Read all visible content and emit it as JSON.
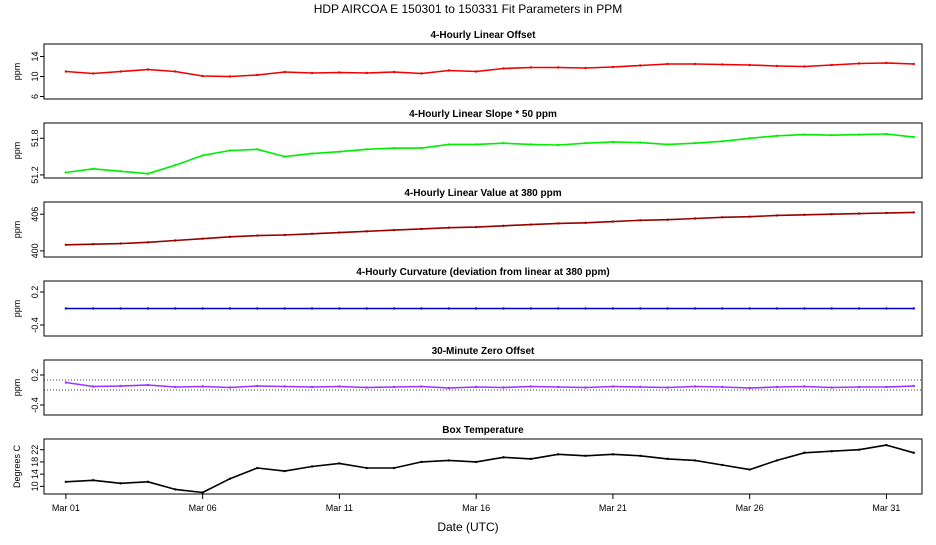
{
  "figure": {
    "title": "HDP    AIRCOA E    150301 to 150331    Fit Parameters in PPM",
    "xlabel": "Date (UTC)",
    "x_ticks": [
      {
        "label": "Mar 01",
        "day": 1
      },
      {
        "label": "Mar 06",
        "day": 6
      },
      {
        "label": "Mar 11",
        "day": 11
      },
      {
        "label": "Mar 16",
        "day": 16
      },
      {
        "label": "Mar 21",
        "day": 21
      },
      {
        "label": "Mar 26",
        "day": 26
      },
      {
        "label": "Mar 31",
        "day": 31
      }
    ],
    "xlim_days": [
      0.2,
      32.3
    ]
  },
  "chart_data": [
    {
      "type": "line",
      "title": "4-Hourly Linear Offset",
      "ylabel": "ppm",
      "color": "#ee0000",
      "ylim": [
        5.5,
        16.5
      ],
      "y_ticks": [
        6,
        10,
        14
      ],
      "reference_lines": [],
      "x": [
        1.0,
        2.0,
        3.0,
        4.0,
        5.0,
        6.0,
        7.0,
        8.0,
        9.0,
        10.0,
        11.0,
        12.0,
        13.0,
        14.0,
        15.0,
        16.0,
        17.0,
        18.0,
        19.0,
        20.0,
        21.0,
        22.0,
        23.0,
        24.0,
        25.0,
        26.0,
        27.0,
        28.0,
        29.0,
        30.0,
        31.0,
        32.0
      ],
      "values": [
        11.0,
        10.6,
        11.0,
        11.4,
        11.0,
        10.1,
        10.0,
        10.3,
        10.9,
        10.7,
        10.8,
        10.7,
        10.9,
        10.6,
        11.2,
        11.0,
        11.6,
        11.8,
        11.8,
        11.7,
        11.9,
        12.2,
        12.5,
        12.5,
        12.4,
        12.3,
        12.1,
        12.0,
        12.3,
        12.6,
        12.7,
        12.5
      ]
    },
    {
      "type": "line",
      "title": "4-Hourly Linear Slope * 50 ppm",
      "ylabel": "ppm",
      "color": "#00ee00",
      "ylim": [
        51.15,
        52.05
      ],
      "y_ticks": [
        51.2,
        51.8
      ],
      "reference_lines": [],
      "x": [
        1.0,
        2.0,
        3.0,
        4.0,
        5.0,
        6.0,
        7.0,
        8.0,
        9.0,
        10.0,
        11.0,
        12.0,
        13.0,
        14.0,
        15.0,
        16.0,
        17.0,
        18.0,
        19.0,
        20.0,
        21.0,
        22.0,
        23.0,
        24.0,
        25.0,
        26.0,
        27.0,
        28.0,
        29.0,
        30.0,
        31.0,
        32.0
      ],
      "values": [
        51.24,
        51.3,
        51.26,
        51.22,
        51.36,
        51.52,
        51.6,
        51.62,
        51.5,
        51.55,
        51.58,
        51.62,
        51.64,
        51.64,
        51.7,
        51.7,
        51.72,
        51.7,
        51.69,
        51.72,
        51.74,
        51.73,
        51.7,
        51.72,
        51.75,
        51.8,
        51.84,
        51.86,
        51.85,
        51.86,
        51.87,
        51.82
      ]
    },
    {
      "type": "line",
      "title": "4-Hourly Linear Value at 380 ppm",
      "ylabel": "ppm",
      "color": "#990000",
      "ylim": [
        399.0,
        408.0
      ],
      "y_ticks": [
        400,
        406
      ],
      "reference_lines": [],
      "x": [
        1.0,
        2.0,
        3.0,
        4.0,
        5.0,
        6.0,
        7.0,
        8.0,
        9.0,
        10.0,
        11.0,
        12.0,
        13.0,
        14.0,
        15.0,
        16.0,
        17.0,
        18.0,
        19.0,
        20.0,
        21.0,
        22.0,
        23.0,
        24.0,
        25.0,
        26.0,
        27.0,
        28.0,
        29.0,
        30.0,
        31.0,
        32.0
      ],
      "values": [
        401.0,
        401.1,
        401.2,
        401.4,
        401.7,
        402.0,
        402.3,
        402.5,
        402.6,
        402.8,
        403.0,
        403.2,
        403.4,
        403.6,
        403.8,
        403.9,
        404.1,
        404.3,
        404.5,
        404.6,
        404.8,
        405.0,
        405.1,
        405.3,
        405.5,
        405.6,
        405.8,
        405.9,
        406.0,
        406.1,
        406.2,
        406.3
      ]
    },
    {
      "type": "line",
      "title": "4-Hourly Curvature (deviation from linear at 380 ppm)",
      "ylabel": "ppm",
      "color": "#0000cc",
      "ylim": [
        -0.6,
        0.4
      ],
      "y_ticks": [
        -0.4,
        0.2
      ],
      "reference_lines": [],
      "x": [
        1.0,
        2.0,
        3.0,
        4.0,
        5.0,
        6.0,
        7.0,
        8.0,
        9.0,
        10.0,
        11.0,
        12.0,
        13.0,
        14.0,
        15.0,
        16.0,
        17.0,
        18.0,
        19.0,
        20.0,
        21.0,
        22.0,
        23.0,
        24.0,
        25.0,
        26.0,
        27.0,
        28.0,
        29.0,
        30.0,
        31.0,
        32.0
      ],
      "values": [
        -0.1,
        -0.1,
        -0.1,
        -0.1,
        -0.1,
        -0.1,
        -0.1,
        -0.1,
        -0.1,
        -0.1,
        -0.1,
        -0.1,
        -0.1,
        -0.1,
        -0.1,
        -0.1,
        -0.1,
        -0.1,
        -0.1,
        -0.1,
        -0.1,
        -0.1,
        -0.1,
        -0.1,
        -0.1,
        -0.1,
        -0.1,
        -0.1,
        -0.1,
        -0.1,
        -0.1,
        -0.1
      ]
    },
    {
      "type": "line",
      "title": "30-Minute Zero Offset",
      "ylabel": "ppm",
      "color": "#9933ff",
      "ylim": [
        -0.6,
        0.5
      ],
      "y_ticks": [
        -0.4,
        0.2
      ],
      "reference_lines": [
        0.1,
        -0.1
      ],
      "x": [
        1.0,
        2.0,
        3.0,
        4.0,
        5.0,
        6.0,
        7.0,
        8.0,
        9.0,
        10.0,
        11.0,
        12.0,
        13.0,
        14.0,
        15.0,
        16.0,
        17.0,
        18.0,
        19.0,
        20.0,
        21.0,
        22.0,
        23.0,
        24.0,
        25.0,
        26.0,
        27.0,
        28.0,
        29.0,
        30.0,
        31.0,
        32.0
      ],
      "values": [
        0.05,
        -0.03,
        -0.02,
        0.0,
        -0.04,
        -0.03,
        -0.05,
        -0.02,
        -0.03,
        -0.04,
        -0.03,
        -0.05,
        -0.04,
        -0.03,
        -0.06,
        -0.04,
        -0.05,
        -0.03,
        -0.04,
        -0.05,
        -0.03,
        -0.04,
        -0.05,
        -0.03,
        -0.04,
        -0.06,
        -0.04,
        -0.03,
        -0.05,
        -0.04,
        -0.04,
        -0.02
      ]
    },
    {
      "type": "line",
      "title": "Box Temperature",
      "ylabel": "Degrees C",
      "color": "#000000",
      "ylim": [
        7.5,
        25.5
      ],
      "y_ticks": [
        10,
        14,
        18,
        22
      ],
      "reference_lines": [],
      "x": [
        1.0,
        2.0,
        3.0,
        4.0,
        5.0,
        6.0,
        7.0,
        8.0,
        9.0,
        10.0,
        11.0,
        12.0,
        13.0,
        14.0,
        15.0,
        16.0,
        17.0,
        18.0,
        19.0,
        20.0,
        21.0,
        22.0,
        23.0,
        24.0,
        25.0,
        26.0,
        27.0,
        28.0,
        29.0,
        30.0,
        31.0,
        32.0
      ],
      "values": [
        11.5,
        12.0,
        11.0,
        11.5,
        9.0,
        8.0,
        12.5,
        16.0,
        15.0,
        16.5,
        17.5,
        16.0,
        16.0,
        18.0,
        18.5,
        18.0,
        19.5,
        19.0,
        20.5,
        20.0,
        20.5,
        20.0,
        19.0,
        18.5,
        17.0,
        15.5,
        18.5,
        21.0,
        21.5,
        22.0,
        23.5,
        21.0
      ]
    }
  ]
}
